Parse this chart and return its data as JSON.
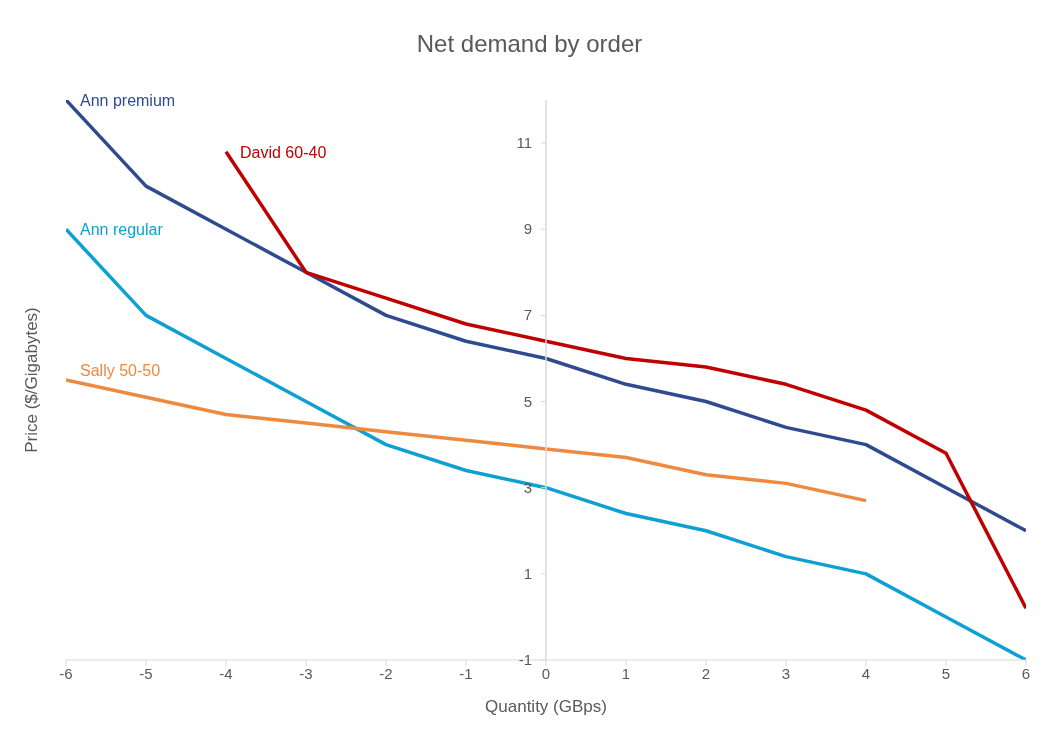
{
  "chart_data": {
    "type": "line",
    "title": "Net demand by order",
    "xlabel": "Quantity (GBps)",
    "ylabel": "Price ($/Gigabytes)",
    "x": [
      -6,
      -5,
      -4,
      -3,
      -2,
      -1,
      0,
      1,
      2,
      3,
      4,
      5,
      6
    ],
    "series": [
      {
        "name": "Ann premium",
        "color": "#2f4b8f",
        "values": [
          12,
          10,
          9,
          8,
          7,
          6.4,
          6,
          5.4,
          5,
          4.4,
          4,
          3,
          2
        ]
      },
      {
        "name": "David 60-40",
        "color": "#c00000",
        "values": [
          null,
          null,
          10.8,
          8,
          7.4,
          6.8,
          6.4,
          6,
          5.8,
          5.4,
          4.8,
          3.8,
          0.2
        ]
      },
      {
        "name": "Ann regular",
        "color": "#0ea0d2",
        "values": [
          9,
          7,
          6,
          5,
          4,
          3.4,
          3,
          2.4,
          2,
          1.4,
          1,
          0,
          -1
        ]
      },
      {
        "name": "Sally 50-50",
        "color": "#ed8a3f",
        "values": [
          5.5,
          5.1,
          4.7,
          4.5,
          4.3,
          4.1,
          3.9,
          3.7,
          3.3,
          3.1,
          2.7,
          null,
          null
        ]
      }
    ],
    "xlim": [
      -6,
      6
    ],
    "xticks": [
      -6,
      -5,
      -4,
      -3,
      -2,
      -1,
      0,
      1,
      2,
      3,
      4,
      5,
      6
    ],
    "ylim": [
      -1,
      12
    ],
    "yticks": [
      -1,
      1,
      3,
      5,
      7,
      9,
      11
    ],
    "grid": false,
    "legend": false,
    "marker": "none",
    "line_style": "solid"
  }
}
